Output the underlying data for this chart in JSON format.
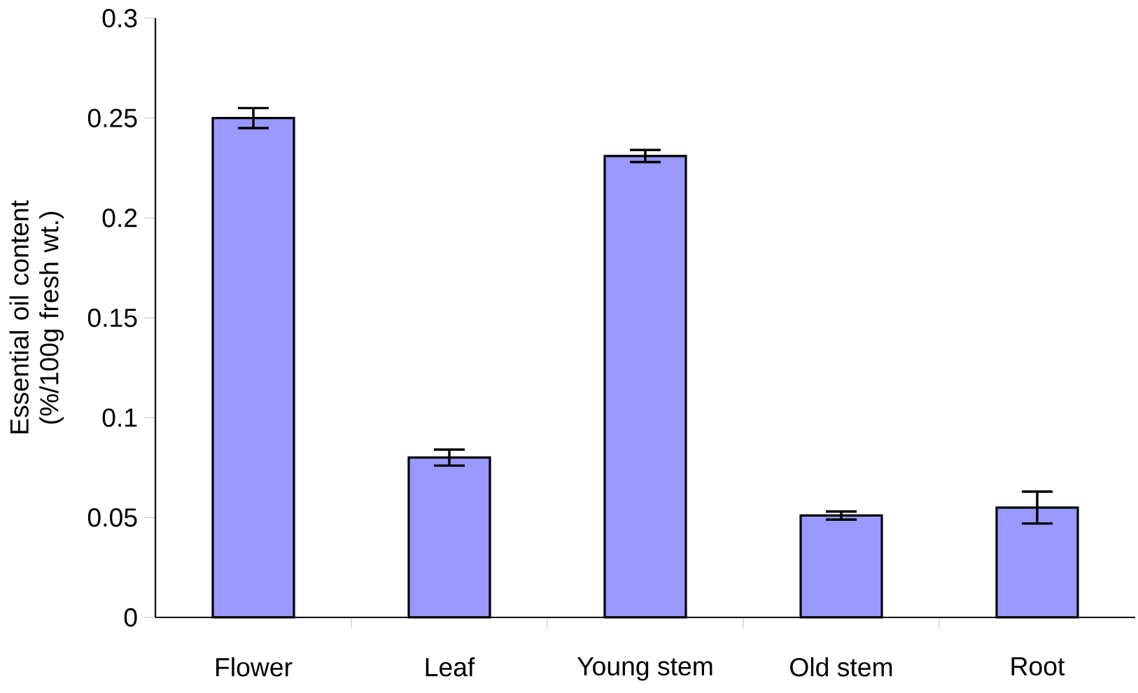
{
  "chart_data": {
    "type": "bar",
    "ylabel": "Essential oil content (%/100g fresh wt.)",
    "categories": [
      "Flower",
      "Leaf",
      "Young stem",
      "Old stem",
      "Root"
    ],
    "values": [
      0.25,
      0.08,
      0.231,
      0.051,
      0.055
    ],
    "errors": [
      0.005,
      0.004,
      0.003,
      0.002,
      0.008
    ],
    "color": "#9999ff",
    "ylim": [
      0,
      0.3
    ],
    "yticks": [
      0,
      0.05,
      0.1,
      0.15,
      0.2,
      0.25,
      0.3
    ],
    "grid": false
  }
}
